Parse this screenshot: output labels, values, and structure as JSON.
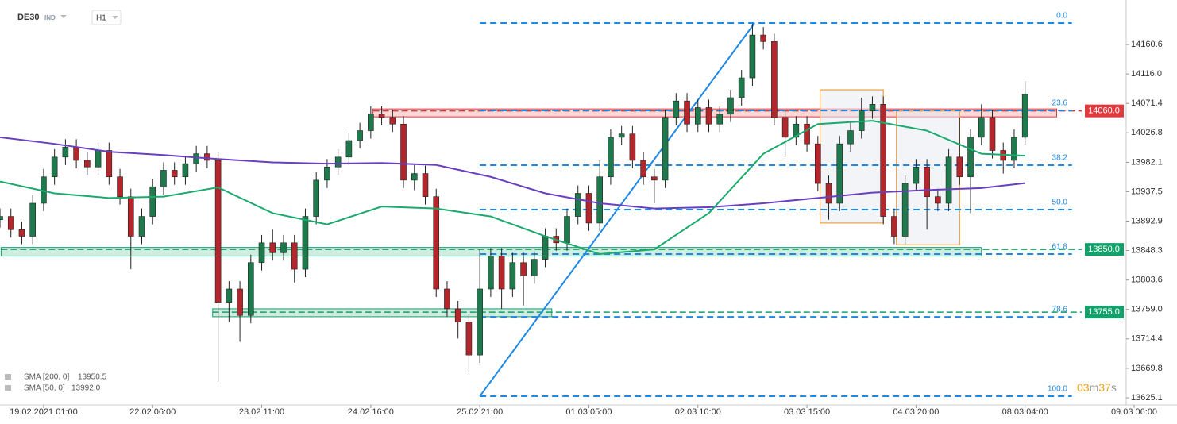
{
  "chart_data": {
    "type": "candlestick",
    "symbol": "DE30",
    "symbol_class": "IND",
    "timeframe": "H1",
    "xlim": [
      0,
      104
    ],
    "ylim": [
      13614.3,
      14216.0
    ],
    "xticks": [
      {
        "value": 4,
        "label": "19.02.2021 01:00"
      },
      {
        "value": 14,
        "label": "22.02 06:00"
      },
      {
        "value": 24,
        "label": "23.02 11:00"
      },
      {
        "value": 34,
        "label": "24.02 16:00"
      },
      {
        "value": 44,
        "label": "25.02 21:00"
      },
      {
        "value": 54,
        "label": "01.03 05:00"
      },
      {
        "value": 64,
        "label": "02.03 10:00"
      },
      {
        "value": 74,
        "label": "03.03 15:00"
      },
      {
        "value": 84,
        "label": "04.03 20:00"
      },
      {
        "value": 94,
        "label": "08.03 04:00"
      },
      {
        "value": 104,
        "label": "09.03 06:00"
      }
    ],
    "yticks": [
      13625.1,
      13669.8,
      13714.4,
      {
        "value": 13759,
        "label": "13759.0"
      },
      13803.6,
      13848.3,
      13892.9,
      13937.5,
      13982.1,
      14026.8,
      14071.4,
      {
        "value": 14116,
        "label": "14116.0"
      },
      14160.6
    ],
    "up_color": "#1e7a4c",
    "down_color": "#b3262c",
    "open": [
      13895,
      13900,
      13880,
      13870,
      13920,
      13960,
      13990,
      14005,
      13985,
      13975,
      14000,
      13960,
      13930,
      13870,
      13900,
      13945,
      13970,
      13960,
      13980,
      13995,
      13985,
      13770,
      13790,
      13750,
      13830,
      13860,
      13845,
      13860,
      13820,
      13900,
      13955,
      13975,
      13990,
      14015,
      14030,
      14055,
      14050,
      14040,
      13955,
      13965,
      13930,
      13790,
      13760,
      13740,
      13690,
      13790,
      13840,
      13790,
      13830,
      13810,
      13835,
      13870,
      13860,
      13900,
      13935,
      13890,
      13960,
      14020,
      14025,
      13985,
      13960,
      13955,
      14050,
      14075,
      14040,
      14065,
      14040,
      14055,
      14080,
      14110,
      14175,
      14165,
      14050,
      14020,
      14040,
      14010,
      13950,
      13920,
      14010,
      14030,
      14060,
      14070,
      13900,
      13870,
      13950,
      13975,
      13930,
      13920,
      13990,
      13960,
      14020,
      14050,
      14000,
      13985,
      14020
    ],
    "high": [
      13912,
      13912,
      13892,
      13932,
      13972,
      14002,
      14017,
      14017,
      13997,
      14012,
      14012,
      13972,
      13942,
      13912,
      13957,
      13982,
      13982,
      13992,
      14007,
      14007,
      13997,
      13802,
      13802,
      13842,
      13872,
      13880,
      13872,
      13872,
      13912,
      13967,
      13987,
      14002,
      14027,
      14042,
      14067,
      14067,
      14062,
      14052,
      13980,
      13977,
      13942,
      13802,
      13772,
      13752,
      13850,
      13852,
      13852,
      13845,
      13845,
      13847,
      13882,
      13882,
      13912,
      13947,
      13947,
      13985,
      14032,
      14037,
      14037,
      13997,
      13972,
      14062,
      14087,
      14087,
      14077,
      14077,
      14067,
      14092,
      14122,
      14192,
      14187,
      14177,
      14062,
      14052,
      14052,
      14022,
      13962,
      14022,
      14042,
      14080,
      14082,
      14082,
      13912,
      13962,
      13987,
      13987,
      13942,
      14002,
      14050,
      14032,
      14070,
      14062,
      14012,
      14032,
      14105
    ],
    "low": [
      13883,
      13868,
      13858,
      13858,
      13908,
      13948,
      13978,
      13973,
      13963,
      13963,
      13948,
      13918,
      13820,
      13858,
      13888,
      13933,
      13948,
      13948,
      13968,
      13973,
      13650,
      13740,
      13710,
      13738,
      13818,
      13833,
      13833,
      13800,
      13808,
      13888,
      13943,
      13963,
      13978,
      14003,
      14018,
      14038,
      14028,
      13943,
      13940,
      13918,
      13778,
      13748,
      13715,
      13665,
      13678,
      13778,
      13760,
      13778,
      13765,
      13798,
      13823,
      13848,
      13848,
      13888,
      13878,
      13878,
      13948,
      14008,
      13973,
      13948,
      13920,
      13943,
      14038,
      14028,
      14028,
      14028,
      14028,
      14043,
      14068,
      14098,
      14153,
      14038,
      13990,
      14008,
      13998,
      13938,
      13895,
      13908,
      13998,
      14018,
      14048,
      13888,
      13858,
      13858,
      13938,
      13880,
      13908,
      13908,
      13948,
      13905,
      14008,
      13988,
      13965,
      13973,
      14008
    ],
    "close": [
      13900,
      13880,
      13870,
      13920,
      13960,
      13990,
      14005,
      13985,
      13975,
      14000,
      13960,
      13930,
      13870,
      13900,
      13945,
      13970,
      13960,
      13980,
      13995,
      13985,
      13770,
      13790,
      13750,
      13830,
      13860,
      13845,
      13860,
      13820,
      13900,
      13955,
      13975,
      13990,
      14015,
      14030,
      14055,
      14050,
      14040,
      13955,
      13965,
      13930,
      13790,
      13760,
      13740,
      13690,
      13790,
      13840,
      13790,
      13830,
      13810,
      13835,
      13870,
      13860,
      13900,
      13935,
      13890,
      13960,
      14020,
      14025,
      13985,
      13960,
      13955,
      14050,
      14075,
      14040,
      14065,
      14040,
      14055,
      14080,
      14110,
      14175,
      14165,
      14050,
      14020,
      14040,
      14010,
      13950,
      13920,
      14010,
      14030,
      14060,
      14070,
      13900,
      13870,
      13950,
      13975,
      13930,
      13920,
      13990,
      13960,
      14020,
      14050,
      14000,
      13985,
      14020,
      14085
    ],
    "series": [
      {
        "name": "SMA [200, 0]",
        "color": "#6a3fbf",
        "value_label": "13950.5",
        "x": [
          0,
          5,
          10,
          15,
          20,
          25,
          30,
          35,
          40,
          45,
          50,
          55,
          60,
          65,
          70,
          75,
          80,
          85,
          90,
          94
        ],
        "values": [
          14020,
          14010,
          13998,
          13993,
          13987,
          13982,
          13980,
          13981,
          13978,
          13960,
          13935,
          13920,
          13912,
          13914,
          13920,
          13928,
          13936,
          13940,
          13943,
          13950.5
        ]
      },
      {
        "name": "SMA [50, 0]",
        "color": "#1aaa6e",
        "value_label": "13992.0",
        "x": [
          0,
          5,
          10,
          15,
          20,
          25,
          30,
          35,
          40,
          45,
          50,
          55,
          60,
          65,
          70,
          75,
          80,
          85,
          90,
          94
        ],
        "values": [
          13953,
          13935,
          13928,
          13930,
          13944,
          13905,
          13888,
          13915,
          13912,
          13900,
          13870,
          13843,
          13850,
          13905,
          13995,
          14040,
          14045,
          14030,
          13995,
          13992
        ]
      }
    ],
    "levels": [
      {
        "price": 14060,
        "label": "14060.0",
        "color": "#e03a3e",
        "zone": [
          14051,
          14063
        ],
        "from": 34.2,
        "to": 96.9
      },
      {
        "price": 13850,
        "label": "13850.0",
        "color": "#13a06a",
        "zone": [
          13840,
          13853
        ],
        "from": 0.1,
        "to": 90
      },
      {
        "price": 13755,
        "label": "13755.0",
        "color": "#13a06a",
        "zone": [
          13748,
          13760
        ],
        "from": 19.5,
        "to": 50.6
      }
    ],
    "fib": {
      "from": 44,
      "to": 98.3,
      "color": "#1e88e5",
      "trend": {
        "x": [
          44,
          69.2
        ],
        "y": [
          13627.5,
          14193.1
        ]
      },
      "levels": [
        {
          "level": "0.0",
          "price": 14193.1
        },
        {
          "level": "23.6",
          "price": 14060.7
        },
        {
          "level": "38.2",
          "price": 13977.7
        },
        {
          "level": "50.0",
          "price": 13910.3
        },
        {
          "level": "61.8",
          "price": 13842.9
        },
        {
          "level": "78.6",
          "price": 13747.8
        },
        {
          "level": "100.0",
          "price": 13627.5
        }
      ]
    },
    "boxes": [
      {
        "x": [
          75.2,
          81
        ],
        "y": [
          13890,
          14092
        ]
      },
      {
        "x": [
          82.2,
          88
        ],
        "y": [
          13857,
          14060
        ]
      }
    ],
    "timer_parts": [
      "03",
      "m",
      "37",
      "s"
    ]
  }
}
